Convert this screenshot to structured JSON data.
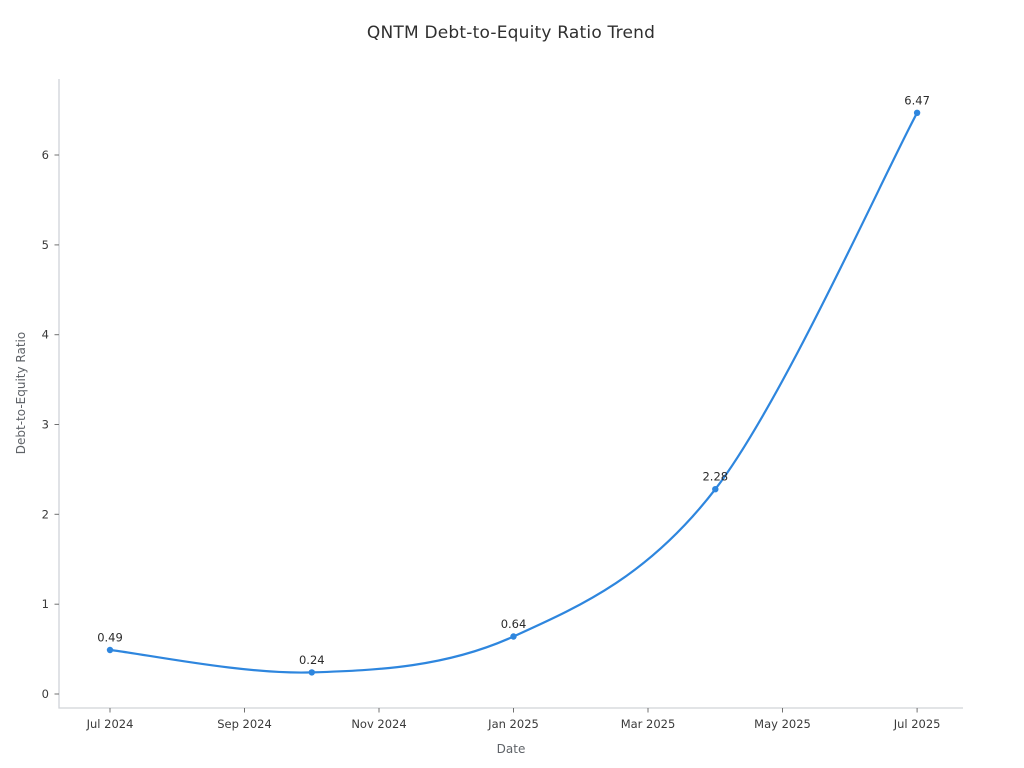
{
  "chart_data": {
    "type": "line",
    "title": "QNTM Debt-to-Equity Ratio Trend",
    "xlabel": "Date",
    "ylabel": "Debt-to-Equity Ratio",
    "x_tick_labels": [
      "Jul 2024",
      "Sep 2024",
      "Nov 2024",
      "Jan 2025",
      "Mar 2025",
      "May 2025",
      "Jul 2025"
    ],
    "x_tick_months": [
      0,
      2,
      4,
      6,
      8,
      10,
      12
    ],
    "y_ticks": [
      0,
      1,
      2,
      3,
      4,
      5,
      6
    ],
    "ylim": [
      -0.16,
      6.85
    ],
    "x_range_months": [
      -0.758,
      12.683
    ],
    "grid": false,
    "legend": false,
    "line_smooth": true,
    "series": [
      {
        "name": "Debt-to-Equity Ratio",
        "x_dates": [
          "Jul 2024",
          "Oct 2024",
          "Jan 2025",
          "Apr 2025",
          "Jul 2025"
        ],
        "x_months": [
          0,
          3,
          6,
          9,
          12
        ],
        "values": [
          0.49,
          0.24,
          0.64,
          2.28,
          6.47
        ],
        "point_labels": [
          "0.49",
          "0.24",
          "0.64",
          "2.28",
          "6.47"
        ],
        "color": "#2e86de"
      }
    ],
    "style": {
      "spine_color": "#d0d3d8",
      "tick_color": "#707070",
      "tick_label_color": "#3a3a3a",
      "point_label_color": "#2b2b2b",
      "title_color": "#2f2f2f",
      "axis_label_color": "#5f6368",
      "background": "#ffffff"
    }
  }
}
